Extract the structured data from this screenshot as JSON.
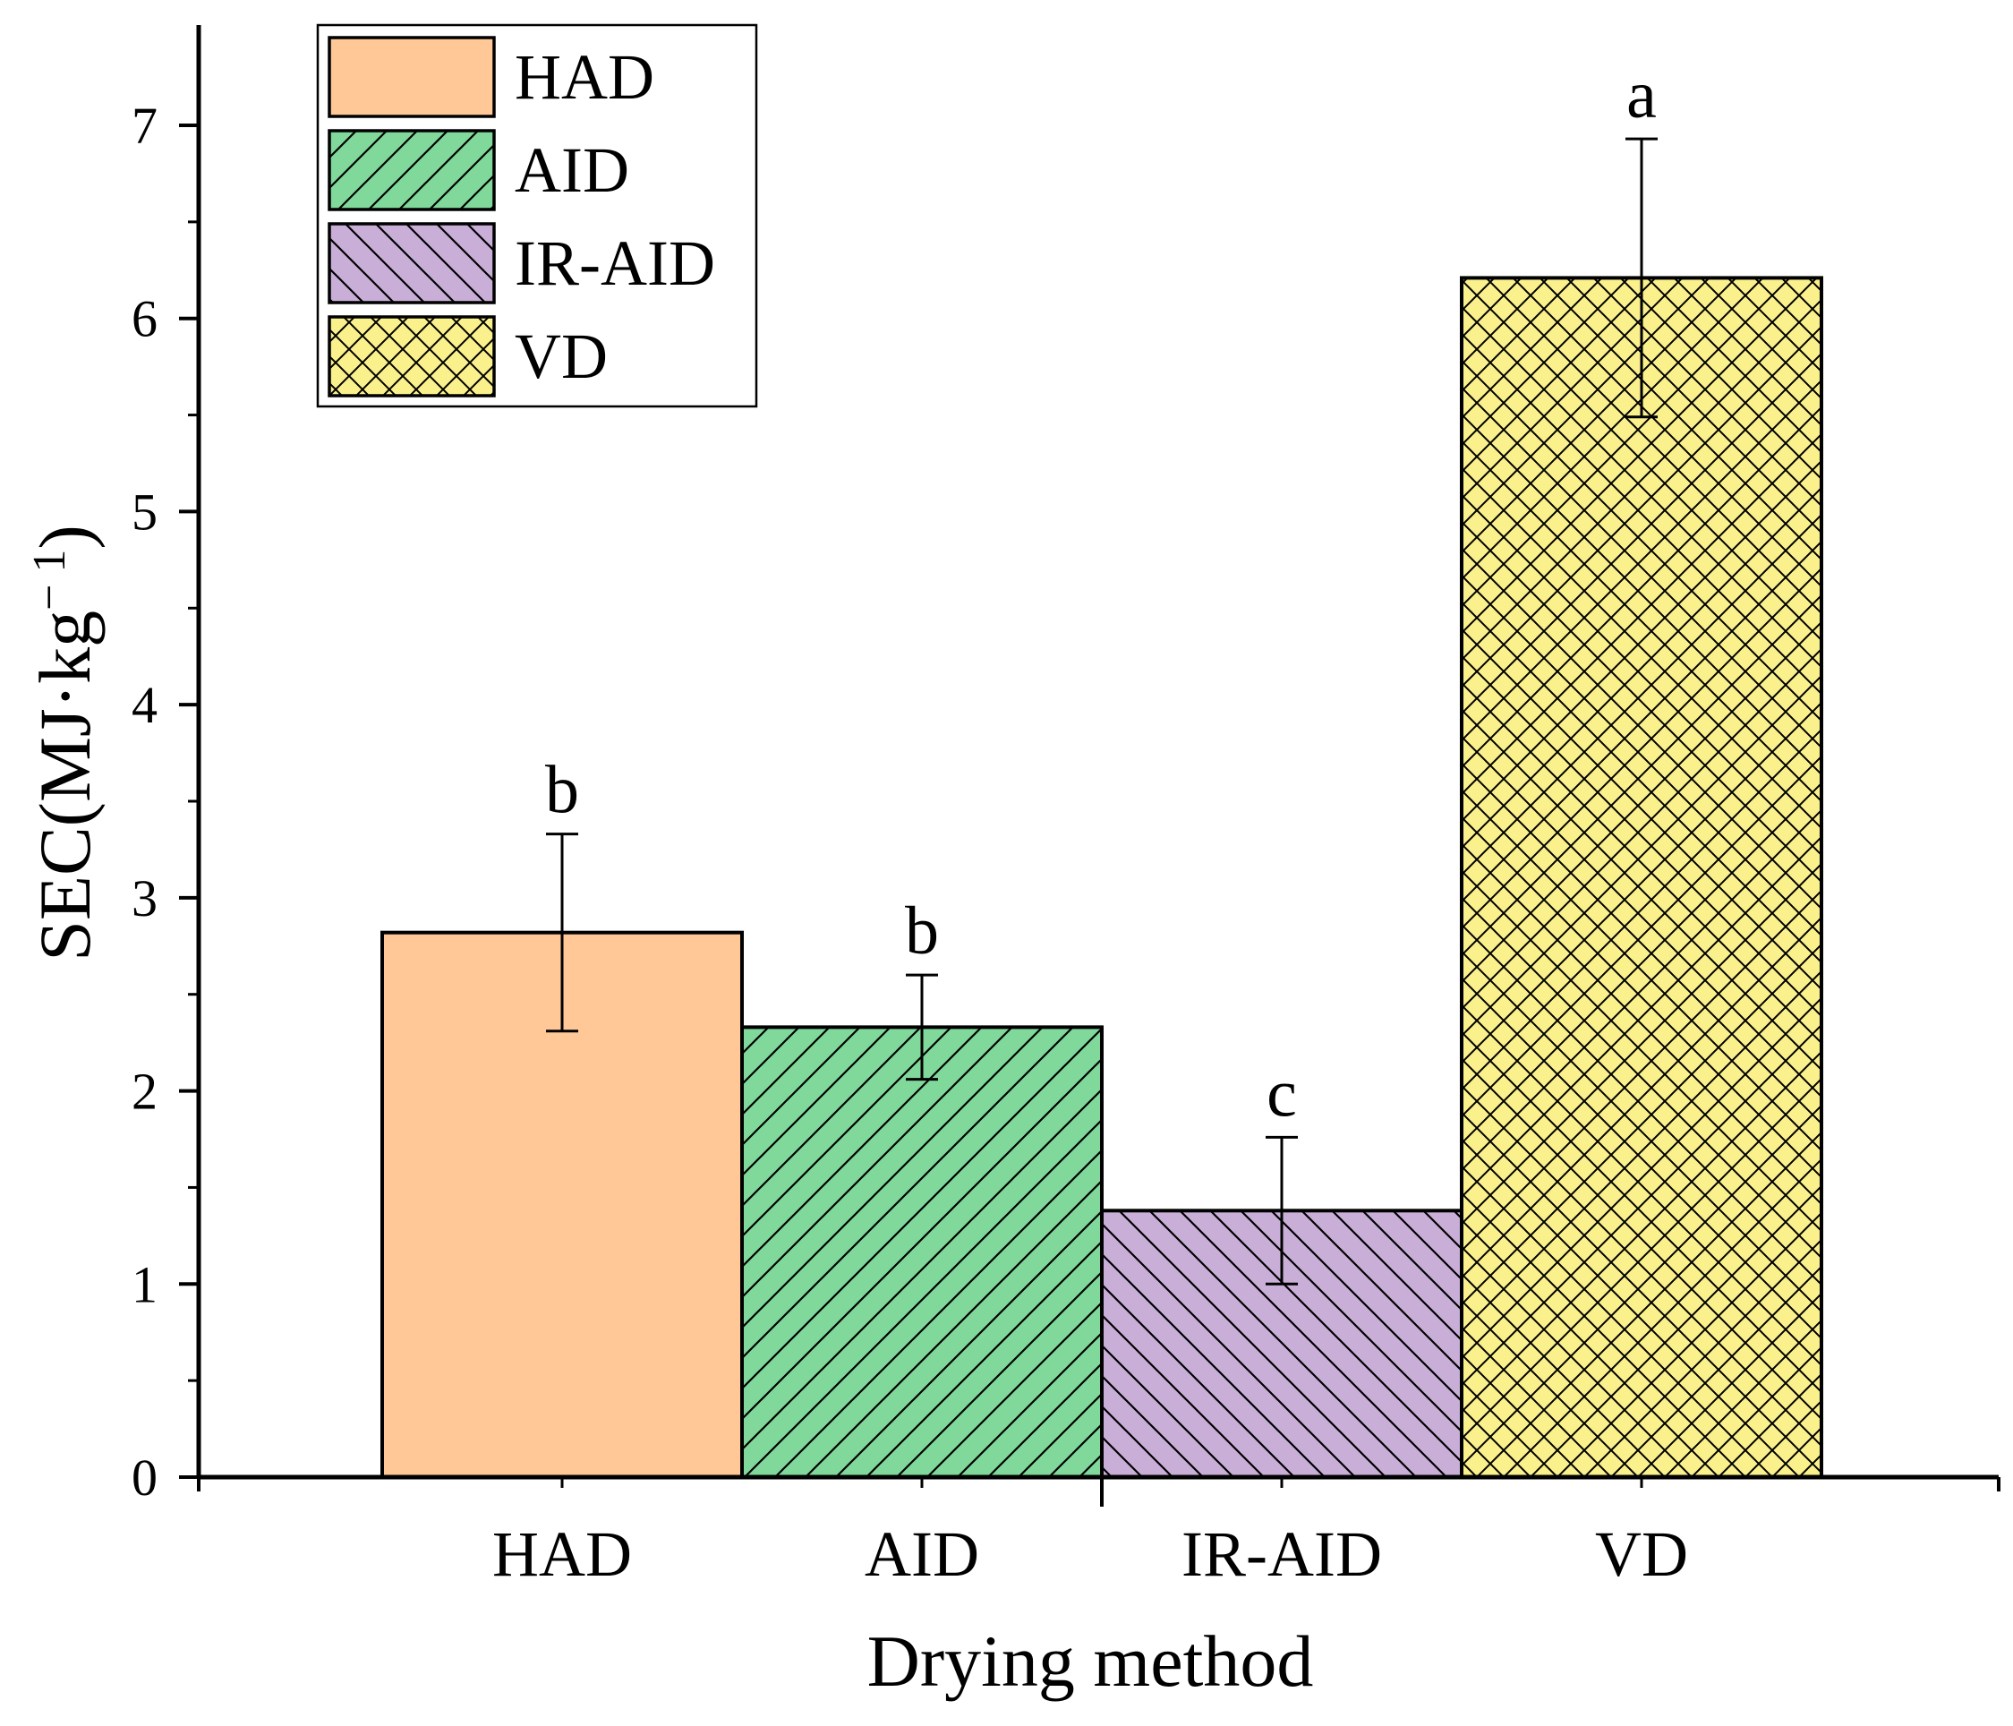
{
  "chart_data": {
    "type": "bar",
    "title": "",
    "xlabel": "Drying method",
    "ylabel": "SEC(MJ·kg⁻¹)",
    "ylabel_parts": {
      "main": "SEC(MJ·kg",
      "sup": "− 1",
      "close": ")"
    },
    "categories": [
      "HAD",
      "AID",
      "IR-AID",
      "VD"
    ],
    "values": [
      2.82,
      2.33,
      1.38,
      6.21
    ],
    "errors": [
      0.51,
      0.27,
      0.38,
      0.72
    ],
    "significance": [
      "b",
      "b",
      "c",
      "a"
    ],
    "ylim": [
      0,
      7.5
    ],
    "yticks": [
      0,
      1,
      2,
      3,
      4,
      5,
      6,
      7
    ],
    "ytick_labels": [
      "0",
      "1",
      "2",
      "3",
      "4",
      "5",
      "6",
      "7"
    ],
    "grid": false,
    "legend": {
      "position": "top-left",
      "entries": [
        "HAD",
        "AID",
        "IR-AID",
        "VD"
      ]
    },
    "series_styles": [
      {
        "name": "HAD",
        "fill": "#FFC896",
        "pattern": "none"
      },
      {
        "name": "AID",
        "fill": "#80D89A",
        "pattern": "diagonal-up"
      },
      {
        "name": "IR-AID",
        "fill": "#C9AFD8",
        "pattern": "diagonal-down"
      },
      {
        "name": "VD",
        "fill": "#FAF08C",
        "pattern": "crosshatch"
      }
    ]
  }
}
